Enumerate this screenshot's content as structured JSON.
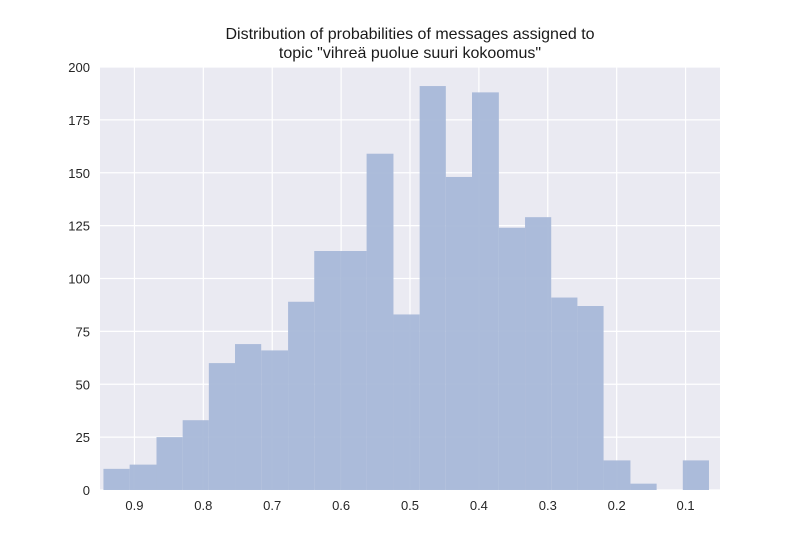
{
  "chart_data": {
    "type": "bar",
    "title_lines": [
      "Distribution of probabilities of messages assigned to",
      "topic \"vihreä puolue suuri kokoomus\""
    ],
    "xlabel": "",
    "ylabel": "",
    "x_axis_reversed": true,
    "xlim": [
      0.95,
      0.05
    ],
    "ylim": [
      0,
      200
    ],
    "x_ticks": [
      0.9,
      0.8,
      0.7,
      0.6,
      0.5,
      0.4,
      0.3,
      0.2,
      0.1
    ],
    "x_tick_labels": [
      "0.9",
      "0.8",
      "0.7",
      "0.6",
      "0.5",
      "0.4",
      "0.3",
      "0.2",
      "0.1"
    ],
    "y_ticks": [
      0,
      25,
      50,
      75,
      100,
      125,
      150,
      175,
      200
    ],
    "y_tick_labels": [
      "0",
      "25",
      "50",
      "75",
      "100",
      "125",
      "150",
      "175",
      "200"
    ],
    "bin_edges": [
      0.945,
      0.907,
      0.868,
      0.83,
      0.792,
      0.754,
      0.716,
      0.677,
      0.639,
      0.601,
      0.563,
      0.524,
      0.486,
      0.448,
      0.41,
      0.371,
      0.333,
      0.295,
      0.257,
      0.219,
      0.18,
      0.142,
      0.104,
      0.066
    ],
    "values": [
      10,
      12,
      25,
      33,
      60,
      69,
      66,
      89,
      113,
      113,
      159,
      83,
      191,
      148,
      188,
      124,
      129,
      91,
      87,
      14,
      3,
      0,
      14
    ],
    "grid": true,
    "legend": "none",
    "colors": {
      "background": "#eaeaf2",
      "grid": "#ffffff",
      "bar": "#a8b8d8"
    }
  }
}
